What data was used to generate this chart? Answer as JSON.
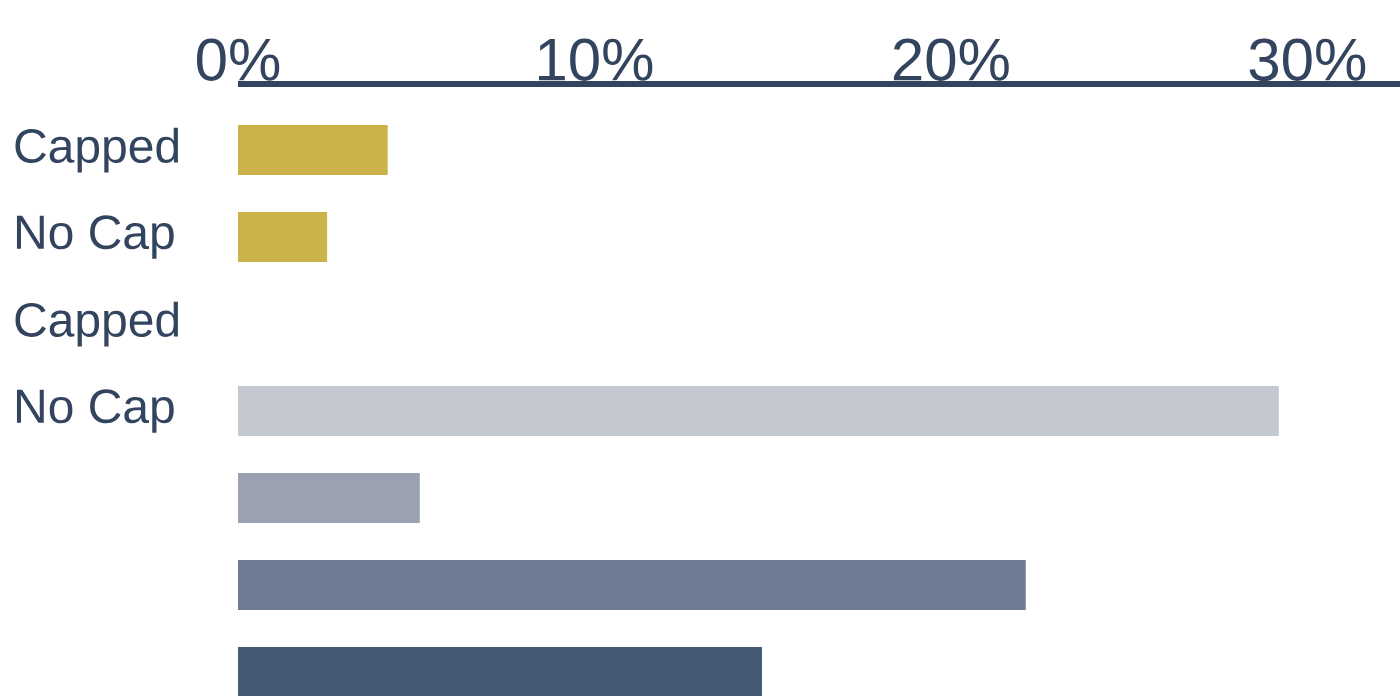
{
  "chart_data": {
    "type": "bar",
    "orientation": "horizontal",
    "categories": [
      "Capped",
      "No Cap",
      "Capped",
      "No Cap",
      null,
      null,
      null
    ],
    "values": [
      4.2,
      2.5,
      null,
      29.2,
      5.1,
      22.1,
      14.7
    ],
    "colors": [
      "#cbb249",
      "#cbb249",
      "#cbb249",
      "#c3c8d1",
      "#9aa2b2",
      "#6e7b93",
      "#475a75"
    ],
    "xlim": [
      0,
      32.6
    ],
    "xticks": [
      {
        "value": 0,
        "label": "0%"
      },
      {
        "value": 10,
        "label": "10%"
      },
      {
        "value": 20,
        "label": "20%"
      },
      {
        "value": 30,
        "label": "30%"
      }
    ],
    "grid": false
  }
}
